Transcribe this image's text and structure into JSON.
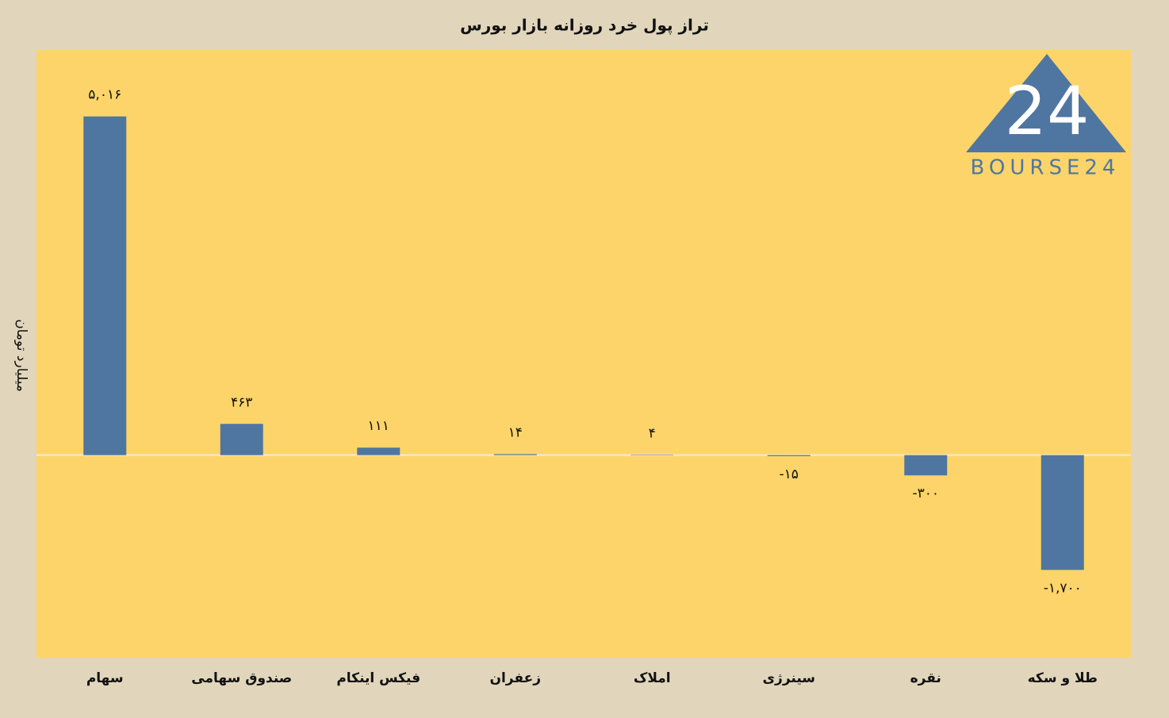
{
  "chart_data": {
    "type": "bar",
    "title": "تراز پول خرد روزانه بازار بورس",
    "y_label": "میلیارد تومان",
    "categories": [
      "سهام",
      "صندوق سهامی",
      "فیکس اینکام",
      "زعفران",
      "املاک",
      "سینرژی",
      "نقره",
      "طلا و سکه"
    ],
    "values": [
      5016,
      463,
      111,
      14,
      4,
      -15,
      -300,
      -1700
    ],
    "value_labels": [
      "۵,۰۱۶",
      "۴۶۳",
      "۱۱۱",
      "۱۴",
      "۴",
      "-۱۵",
      "-۳۰۰",
      "-۱,۷۰۰"
    ],
    "color": "#4f76a0",
    "ylim": [
      -3000,
      6000
    ]
  },
  "logo": {
    "mark": "24",
    "text": "BOURSE24"
  }
}
